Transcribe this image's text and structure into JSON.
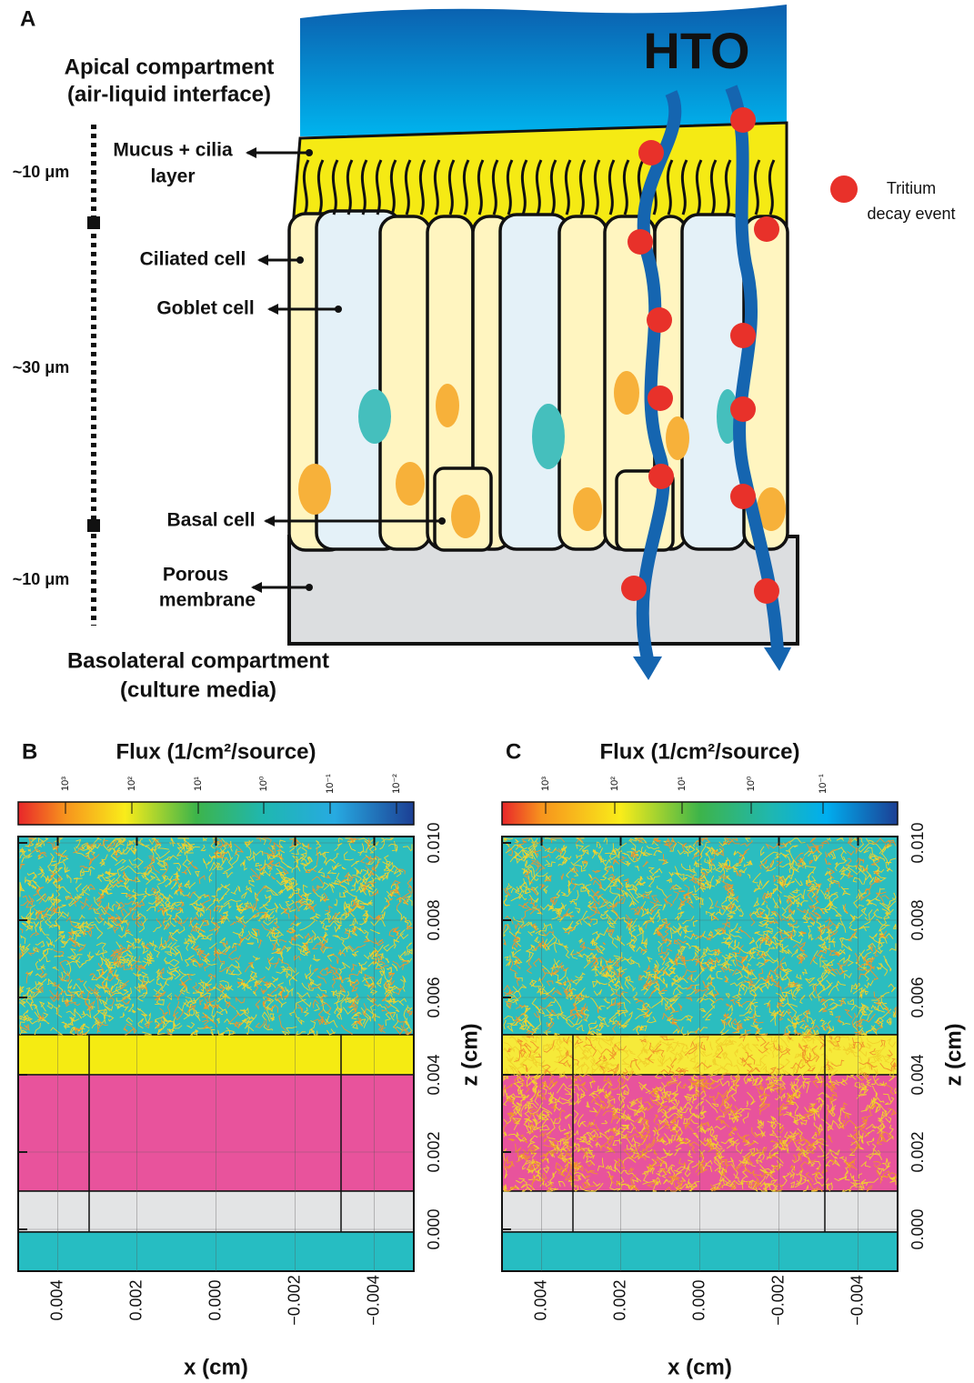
{
  "panel_a": {
    "label": "A",
    "apical": [
      "Apical compartment",
      "(air-liquid interface)"
    ],
    "scale_labels": [
      "~10 μm",
      "~30 μm",
      "~10 μm"
    ],
    "mucus": [
      "Mucus + cilia",
      "layer"
    ],
    "ciliated": "Ciliated cell",
    "goblet": "Goblet cell",
    "basal": "Basal cell",
    "membrane": [
      "Porous",
      "membrane"
    ],
    "basolateral": [
      "Basolateral compartment",
      "(culture media)"
    ],
    "hto": "HTO",
    "legend": [
      "Tritium",
      "decay event"
    ]
  },
  "panels": [
    {
      "label": "B",
      "colorbar_title": "Flux (1/cm²/source)",
      "colorbar_labels": [
        "10³",
        "10²",
        "10¹",
        "10⁰",
        "10⁻¹",
        "10⁻²"
      ],
      "xlabel": "x (cm)",
      "ylabel": "z (cm)",
      "xticks": [
        {
          "value": 0.004,
          "label": "0.004"
        },
        {
          "value": 0.002,
          "label": "0.002"
        },
        {
          "value": 0,
          "label": "0.000"
        },
        {
          "value": -0.002,
          "label": "−0.002"
        },
        {
          "value": -0.004,
          "label": "−0.004"
        }
      ],
      "zticks": [
        {
          "value": 0,
          "label": "0.000"
        },
        {
          "value": 0.002,
          "label": "0.002"
        },
        {
          "value": 0.004,
          "label": "0.004"
        },
        {
          "value": 0.006,
          "label": "0.006"
        },
        {
          "value": 0.008,
          "label": "0.008"
        },
        {
          "value": 0.01,
          "label": "0.010"
        }
      ]
    },
    {
      "label": "C",
      "colorbar_title": "Flux (1/cm²/source)",
      "colorbar_labels": [
        "10³",
        "10²",
        "10¹",
        "10⁰",
        "10⁻¹"
      ],
      "xlabel": "x (cm)",
      "ylabel": "z (cm)",
      "xticks": [
        {
          "value": 0.004,
          "label": "0.004"
        },
        {
          "value": 0.002,
          "label": "0.002"
        },
        {
          "value": 0,
          "label": "0.000"
        },
        {
          "value": -0.002,
          "label": "−0.002"
        },
        {
          "value": -0.004,
          "label": "−0.004"
        }
      ],
      "zticks": [
        {
          "value": 0,
          "label": "0.000"
        },
        {
          "value": 0.002,
          "label": "0.002"
        },
        {
          "value": 0.004,
          "label": "0.004"
        },
        {
          "value": 0.006,
          "label": "0.006"
        },
        {
          "value": 0.008,
          "label": "0.008"
        },
        {
          "value": 0.01,
          "label": "0.010"
        }
      ]
    }
  ]
}
